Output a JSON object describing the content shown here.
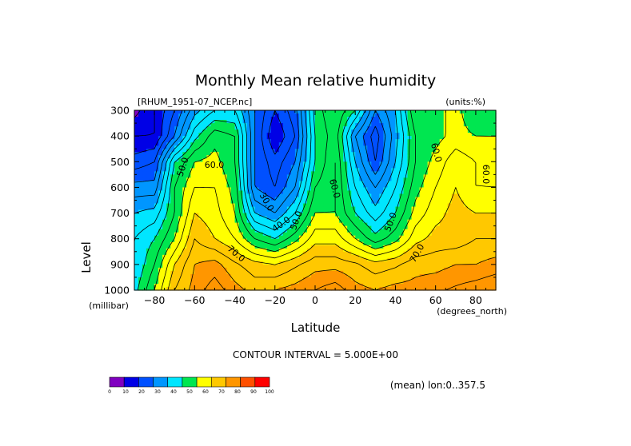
{
  "chart_data": {
    "type": "contour",
    "title": "Monthly Mean relative humidity",
    "file_label": "[RHUM_1951-07_NCEP.nc]",
    "units_label": "(units:%)",
    "xlabel": "Latitude",
    "xunits": "(degrees_north)",
    "ylabel": "Level",
    "yunits": "(millibar)",
    "xlim": [
      -90,
      90
    ],
    "ylim": [
      1000,
      300
    ],
    "xticks": [
      -80,
      -60,
      -40,
      -20,
      0,
      20,
      40,
      60,
      80
    ],
    "yticks": [
      300,
      400,
      500,
      600,
      700,
      800,
      900,
      1000
    ],
    "contour_interval_text": "CONTOUR INTERVAL = 5.000E+00",
    "mean_text": "(mean) lon:0..357.5",
    "colorbar": {
      "ticks": [
        0,
        10,
        20,
        30,
        40,
        50,
        60,
        70,
        80,
        90,
        100
      ],
      "colors": [
        "#8000c0",
        "#0000e6",
        "#0050ff",
        "#0096ff",
        "#00e6ff",
        "#00e650",
        "#ffff00",
        "#ffc800",
        "#ff9600",
        "#ff5000",
        "#ff0000"
      ]
    },
    "contour_labels": [
      "60.0",
      "50.0",
      "70.0",
      "30.0",
      "40.0",
      "50.0",
      "60.0",
      "50.0",
      "70.0",
      "60.0",
      "60.0"
    ],
    "levels": [
      300,
      400,
      500,
      600,
      700,
      800,
      900,
      1000
    ],
    "lats": [
      -90,
      -80,
      -70,
      -60,
      -50,
      -40,
      -30,
      -20,
      -10,
      0,
      10,
      20,
      30,
      40,
      50,
      60,
      70,
      80,
      90
    ],
    "rh": [
      [
        8,
        15,
        25,
        38,
        45,
        45,
        30,
        20,
        28,
        52,
        60,
        50,
        30,
        40,
        60,
        58,
        62,
        55,
        55
      ],
      [
        15,
        15,
        30,
        48,
        58,
        55,
        30,
        15,
        25,
        50,
        58,
        35,
        22,
        38,
        55,
        58,
        62,
        60,
        60
      ],
      [
        22,
        25,
        50,
        60,
        62,
        55,
        30,
        22,
        30,
        50,
        60,
        40,
        25,
        40,
        55,
        62,
        68,
        65,
        62
      ],
      [
        32,
        32,
        55,
        65,
        65,
        58,
        30,
        25,
        35,
        55,
        60,
        45,
        35,
        45,
        58,
        65,
        70,
        65,
        65
      ],
      [
        40,
        42,
        55,
        70,
        67,
        60,
        40,
        35,
        45,
        60,
        60,
        50,
        42,
        50,
        62,
        68,
        72,
        70,
        70
      ],
      [
        45,
        50,
        60,
        75,
        70,
        65,
        55,
        50,
        58,
        68,
        68,
        60,
        52,
        58,
        68,
        72,
        72,
        75,
        75
      ],
      [
        45,
        55,
        70,
        80,
        82,
        76,
        72,
        70,
        74,
        78,
        78,
        76,
        72,
        74,
        78,
        78,
        80,
        80,
        82
      ],
      [
        48,
        60,
        75,
        82,
        88,
        82,
        78,
        80,
        82,
        85,
        88,
        82,
        80,
        82,
        82,
        84,
        86,
        88,
        90
      ]
    ]
  }
}
